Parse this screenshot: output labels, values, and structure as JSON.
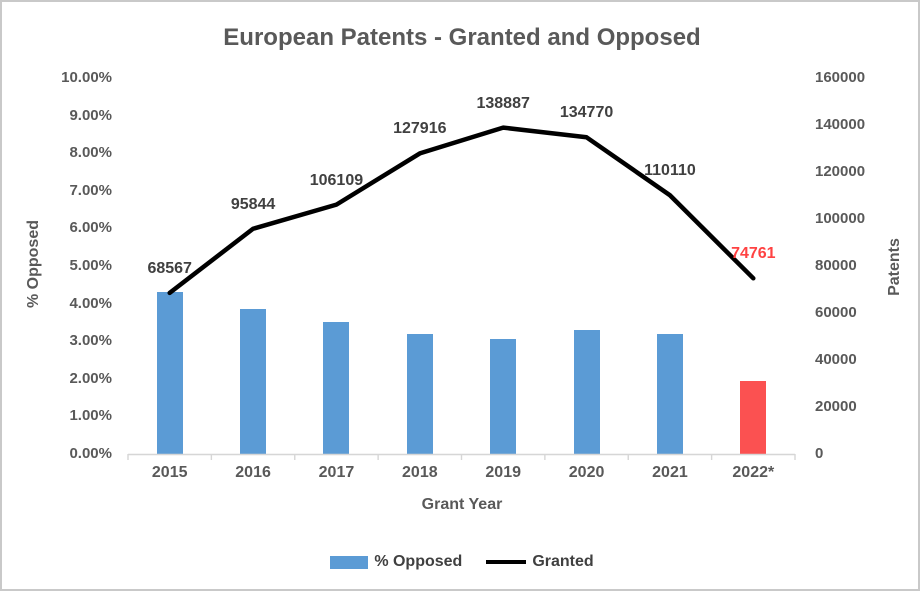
{
  "title": "European Patents - Granted and Opposed",
  "chart_data": {
    "type": "combo-bar-line",
    "categories": [
      "2015",
      "2016",
      "2017",
      "2018",
      "2019",
      "2020",
      "2021",
      "2022*"
    ],
    "series": [
      {
        "name": "% Opposed",
        "type": "bar",
        "axis": "left",
        "values_pct": [
          4.3,
          3.85,
          3.5,
          3.2,
          3.05,
          3.3,
          3.2,
          1.95
        ],
        "colors": [
          "#5B9BD5",
          "#5B9BD5",
          "#5B9BD5",
          "#5B9BD5",
          "#5B9BD5",
          "#5B9BD5",
          "#5B9BD5",
          "#FB5151"
        ]
      },
      {
        "name": "Granted",
        "type": "line",
        "axis": "right",
        "values": [
          68567,
          95844,
          106109,
          127916,
          138887,
          134770,
          110110,
          74761
        ],
        "data_labels": [
          "68567",
          "95844",
          "106109",
          "127916",
          "138887",
          "134770",
          "110110",
          "74761"
        ],
        "label_colors": [
          "#404040",
          "#404040",
          "#404040",
          "#404040",
          "#404040",
          "#404040",
          "#404040",
          "#FF4242"
        ],
        "line_color": "#000000"
      }
    ],
    "y_left": {
      "title": "% Opposed",
      "min": 0,
      "max": 10,
      "tick_labels": [
        "0.00%",
        "1.00%",
        "2.00%",
        "3.00%",
        "4.00%",
        "5.00%",
        "6.00%",
        "7.00%",
        "8.00%",
        "9.00%",
        "10.00%"
      ]
    },
    "y_right": {
      "title": "Patents",
      "min": 0,
      "max": 160000,
      "tick_labels": [
        "0",
        "20000",
        "40000",
        "60000",
        "80000",
        "100000",
        "120000",
        "140000",
        "160000"
      ]
    },
    "x": {
      "title": "Grant Year"
    },
    "grid": false,
    "legend_position": "bottom"
  },
  "legend": {
    "items": [
      {
        "label": "% Opposed",
        "swatch": "bar",
        "color": "#5B9BD5"
      },
      {
        "label": "Granted",
        "swatch": "line",
        "color": "#000000"
      }
    ]
  },
  "colors": {
    "bar_blue": "#5B9BD5",
    "bar_red": "#FB5151",
    "line_black": "#000000",
    "red_label": "#FF4242",
    "axis_text": "#595959",
    "data_label_text": "#404040",
    "axis_line": "#D6D6D6"
  }
}
